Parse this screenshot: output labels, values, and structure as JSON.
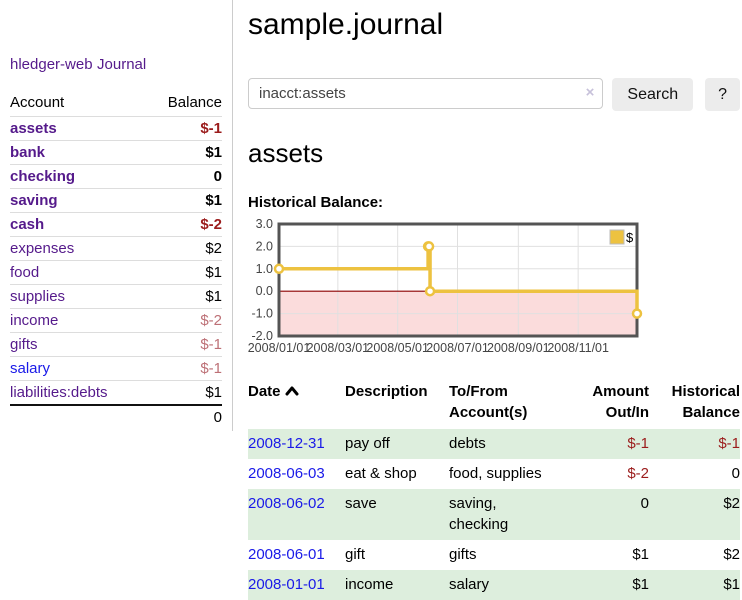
{
  "app": {
    "brand": "hledger-web",
    "nav_journal": "Journal"
  },
  "sidebar": {
    "headers": {
      "account": "Account",
      "balance": "Balance"
    },
    "rows": [
      {
        "account": "assets",
        "balance": "$-1",
        "level": 1,
        "bold": true,
        "balance_style": "neg-strong",
        "link_style": "visited"
      },
      {
        "account": "bank",
        "balance": "$1",
        "level": 2,
        "bold": true,
        "balance_style": "",
        "link_style": "visited"
      },
      {
        "account": "checking",
        "balance": "0",
        "level": 3,
        "bold": true,
        "balance_style": "",
        "link_style": "visited"
      },
      {
        "account": "saving",
        "balance": "$1",
        "level": 3,
        "bold": true,
        "balance_style": "",
        "link_style": "visited"
      },
      {
        "account": "cash",
        "balance": "$-2",
        "level": 2,
        "bold": true,
        "balance_style": "neg-strong",
        "link_style": "visited"
      },
      {
        "account": "expenses",
        "balance": "$2",
        "level": 1,
        "bold": false,
        "balance_style": "",
        "link_style": "visited"
      },
      {
        "account": "food",
        "balance": "$1",
        "level": 2,
        "bold": false,
        "balance_style": "",
        "link_style": "visited"
      },
      {
        "account": "supplies",
        "balance": "$1",
        "level": 2,
        "bold": false,
        "balance_style": "",
        "link_style": "visited"
      },
      {
        "account": "income",
        "balance": "$-2",
        "level": 1,
        "bold": false,
        "balance_style": "neg-soft",
        "link_style": "visited"
      },
      {
        "account": "gifts",
        "balance": "$-1",
        "level": 2,
        "bold": false,
        "balance_style": "neg-soft",
        "link_style": "visited"
      },
      {
        "account": "salary",
        "balance": "$-1",
        "level": 2,
        "bold": false,
        "balance_style": "neg-soft",
        "link_style": "unvisited"
      },
      {
        "account": "liabilities:debts",
        "balance": "$1",
        "level": 1,
        "bold": false,
        "balance_style": "",
        "link_style": "visited"
      }
    ],
    "total": "0"
  },
  "header": {
    "title": "sample.journal"
  },
  "search": {
    "value": "inacct:assets",
    "clear_icon": "×",
    "search_button": "Search",
    "help_button": "?"
  },
  "account_page": {
    "heading": "assets",
    "chart_label": "Historical Balance:"
  },
  "chart_data": {
    "type": "line",
    "step": true,
    "title": "Historical Balance",
    "series": [
      {
        "name": "$",
        "color": "#edc240",
        "points": [
          [
            "2008-01-01",
            1
          ],
          [
            "2008-06-01",
            2
          ],
          [
            "2008-06-02",
            2
          ],
          [
            "2008-06-03",
            0
          ],
          [
            "2008-12-31",
            -1
          ]
        ]
      }
    ],
    "x_start": "2008-01-01",
    "x_span_days": 365,
    "x_ticks": [
      "2008/01/01",
      "2008/03/01",
      "2008/05/01",
      "2008/07/01",
      "2008/09/01",
      "2008/11/01"
    ],
    "x_tick_days": [
      0,
      60,
      121,
      182,
      244,
      305
    ],
    "y_ticks": [
      "3.0",
      "2.0",
      "1.0",
      "0.0",
      "-1.0",
      "-2.0"
    ],
    "ylim": [
      -2,
      3
    ],
    "legend": "$",
    "legend_position": "top-right",
    "grid": true,
    "colors": {
      "line": "#edc240",
      "marker_fill": "#ffffff",
      "border": "#545454",
      "grid": "#e0e0e0",
      "negative_region": "#fbdcdc",
      "zero_line": "#8b0000",
      "tick_text": "#444444",
      "legend_box_border": "#bbbbbb"
    }
  },
  "register": {
    "headers": [
      {
        "lines": [
          "Date"
        ],
        "align": "left",
        "sort_icon": true
      },
      {
        "lines": [
          "Description"
        ],
        "align": "left",
        "sort_icon": false
      },
      {
        "lines": [
          "To/From",
          "Account(s)"
        ],
        "align": "left",
        "sort_icon": false
      },
      {
        "lines": [
          "Amount",
          "Out/In"
        ],
        "align": "right",
        "sort_icon": false
      },
      {
        "lines": [
          "Historical",
          "Balance"
        ],
        "align": "right",
        "sort_icon": false
      }
    ],
    "rows": [
      {
        "date": "2008-12-31",
        "description": "pay off",
        "accounts": [
          "debts"
        ],
        "amount": "$-1",
        "balance": "$-1"
      },
      {
        "date": "2008-06-03",
        "description": "eat & shop",
        "accounts": [
          "food, supplies"
        ],
        "amount": "$-2",
        "balance": "0"
      },
      {
        "date": "2008-06-02",
        "description": "save",
        "accounts": [
          "saving,",
          "checking"
        ],
        "amount": "0",
        "balance": "$2"
      },
      {
        "date": "2008-06-01",
        "description": "gift",
        "accounts": [
          "gifts"
        ],
        "amount": "$1",
        "balance": "$2"
      },
      {
        "date": "2008-01-01",
        "description": "income",
        "accounts": [
          "salary"
        ],
        "amount": "$1",
        "balance": "$1"
      }
    ]
  }
}
